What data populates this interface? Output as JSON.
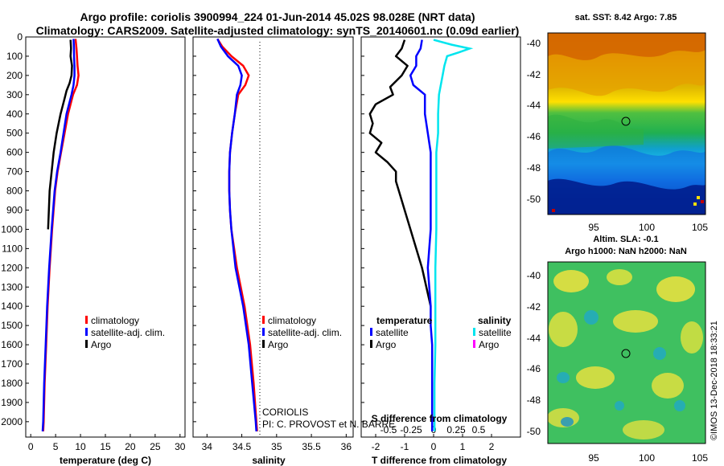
{
  "header": {
    "line1": "Argo profile: coriolis 3900994_224 01-Jun-2014 45.02S 98.028E (NRT data)",
    "line2": "Climatology: CARS2009. Satellite-adjusted climatology: synTS_20140601.nc (0.09d earlier)"
  },
  "colors": {
    "climatology": "#ff0000",
    "satellite": "#0000ff",
    "argo": "#000000",
    "sal_satellite": "#00e5ee",
    "sal_argo": "#ff00ff"
  },
  "chart_data": [
    {
      "type": "line",
      "panel": "temperature",
      "xlabel": "temperature (deg C)",
      "xlim": [
        -1,
        31
      ],
      "ylim": [
        0,
        2080
      ],
      "xticks": [
        "0",
        "5",
        "10",
        "15",
        "20",
        "25",
        "30"
      ],
      "depth_ticks": [
        "0",
        "100",
        "200",
        "300",
        "400",
        "500",
        "600",
        "700",
        "800",
        "900",
        "1000",
        "1100",
        "1200",
        "1300",
        "1400",
        "1500",
        "1600",
        "1700",
        "1800",
        "1900",
        "2000"
      ],
      "legend": [
        "climatology",
        "satellite-adj. clim.",
        "Argo"
      ],
      "series": [
        {
          "name": "climatology",
          "depth": [
            10,
            60,
            100,
            150,
            200,
            250,
            300,
            400,
            500,
            600,
            700,
            800,
            1000,
            1200,
            1400,
            1600,
            1800,
            2000,
            2050
          ],
          "values": [
            9.0,
            9.2,
            9.3,
            9.4,
            9.6,
            9.3,
            8.5,
            7.5,
            6.8,
            6.1,
            5.4,
            4.9,
            4.3,
            3.8,
            3.4,
            3.1,
            2.8,
            2.6,
            2.5
          ]
        },
        {
          "name": "satellite-adj. clim.",
          "depth": [
            10,
            60,
            100,
            150,
            200,
            250,
            300,
            400,
            500,
            600,
            700,
            800,
            1000,
            1200,
            1400,
            1600,
            1800,
            2000,
            2050
          ],
          "values": [
            8.6,
            8.7,
            8.7,
            8.8,
            8.8,
            8.6,
            8.2,
            7.2,
            6.6,
            6.0,
            5.3,
            4.8,
            4.2,
            3.7,
            3.3,
            3.0,
            2.7,
            2.5,
            2.4
          ]
        },
        {
          "name": "Argo",
          "depth": [
            15,
            60,
            100,
            150,
            200,
            240,
            280,
            320,
            400,
            500,
            600,
            700,
            800,
            1000
          ],
          "values": [
            8.0,
            8.1,
            8.0,
            8.3,
            8.2,
            7.8,
            7.2,
            6.8,
            6.0,
            5.2,
            4.6,
            4.2,
            3.8,
            3.5
          ]
        }
      ]
    },
    {
      "type": "line",
      "panel": "salinity",
      "xlabel": "salinity",
      "xlim": [
        33.8,
        36.1
      ],
      "ylim": [
        0,
        2080
      ],
      "xticks": [
        "34",
        "34.5",
        "35",
        "35.5",
        "36"
      ],
      "legend": [
        "climatology",
        "satellite-adj. clim.",
        "Argo"
      ],
      "annotation": [
        "CORIOLIS",
        "PI: C. PROVOST et N. BARRE"
      ],
      "series": [
        {
          "name": "climatology",
          "depth": [
            10,
            50,
            100,
            150,
            200,
            250,
            300,
            400,
            500,
            600,
            700,
            800,
            900,
            1000,
            1200,
            1400,
            1600,
            1800,
            2000,
            2050
          ],
          "values": [
            34.15,
            34.22,
            34.35,
            34.52,
            34.6,
            34.55,
            34.45,
            34.4,
            34.36,
            34.33,
            34.32,
            34.32,
            34.33,
            34.35,
            34.43,
            34.54,
            34.62,
            34.67,
            34.71,
            34.72
          ]
        },
        {
          "name": "satellite-adj. clim.",
          "depth": [
            10,
            50,
            100,
            150,
            200,
            250,
            300,
            400,
            500,
            600,
            700,
            800,
            900,
            1000,
            1200,
            1400,
            1600,
            1800,
            2000,
            2050
          ],
          "values": [
            34.15,
            34.2,
            34.3,
            34.45,
            34.5,
            34.48,
            34.43,
            34.4,
            34.36,
            34.33,
            34.32,
            34.32,
            34.33,
            34.35,
            34.41,
            34.52,
            34.6,
            34.65,
            34.7,
            34.71
          ]
        }
      ]
    },
    {
      "type": "line",
      "panel": "difference",
      "xlabel": "T difference from climatology",
      "toplabel": "S difference from climatology",
      "xlim": [
        -2.5,
        3
      ],
      "ylim": [
        0,
        2080
      ],
      "xticks": [
        "-2",
        "-1",
        "0",
        "1",
        "2"
      ],
      "sticks": [
        "-0.5",
        "-0.25",
        "0",
        "0.25",
        "0.5"
      ],
      "legend_t_title": "temperature",
      "legend_s_title": "salinity",
      "legend_t": [
        "satellite",
        "Argo"
      ],
      "legend_s": [
        "satellite",
        "Argo"
      ],
      "series": [
        {
          "name": "T satellite",
          "depth": [
            15,
            60,
            100,
            150,
            200,
            250,
            300,
            400,
            500,
            600,
            700,
            800,
            900,
            1000,
            1200,
            1400,
            1500,
            1600,
            1800,
            2000,
            2050
          ],
          "values": [
            -0.4,
            -0.45,
            -0.6,
            -0.6,
            -0.8,
            -0.7,
            -0.3,
            -0.3,
            -0.2,
            -0.1,
            -0.1,
            -0.1,
            -0.1,
            -0.1,
            -0.2,
            -0.1,
            -0.1,
            -0.05,
            -0.05,
            -0.05,
            -0.05
          ]
        },
        {
          "name": "T Argo",
          "depth": [
            15,
            60,
            100,
            150,
            200,
            260,
            300,
            350,
            400,
            450,
            500,
            550,
            600,
            650,
            700,
            750,
            800,
            900,
            1000,
            1100,
            1200,
            1300,
            1400
          ],
          "values": [
            -1.0,
            -1.1,
            -1.3,
            -0.9,
            -1.1,
            -1.5,
            -1.4,
            -2.0,
            -2.2,
            -2.1,
            -2.2,
            -1.8,
            -2.0,
            -1.6,
            -1.3,
            -1.3,
            -1.2,
            -1.0,
            -0.8,
            -0.6,
            -0.4,
            -0.25,
            -0.1
          ]
        },
        {
          "name": "S satellite",
          "depth": [
            15,
            40,
            60,
            80,
            100,
            150,
            200,
            300,
            400,
            500,
            600,
            700,
            800,
            900,
            1000,
            1200,
            1400,
            1600,
            1800,
            2000,
            2050
          ],
          "values": [
            0.0,
            0.2,
            0.4,
            0.28,
            0.15,
            0.12,
            0.1,
            0.06,
            0.05,
            0.05,
            0.03,
            0.03,
            0.03,
            0.03,
            0.03,
            0.02,
            0.02,
            0.02,
            0.01,
            0.01,
            0.01
          ]
        }
      ]
    }
  ],
  "map_sst": {
    "label": "sat. SST: 8.42 Argo: 7.85",
    "yticks": [
      "-40",
      "-42",
      "-44",
      "-46",
      "-48",
      "-50"
    ],
    "xticks": [
      "95",
      "100",
      "105"
    ]
  },
  "map_sla": {
    "label1": "Altim. SLA: -0.1",
    "label2": "Argo h1000: NaN h2000: NaN",
    "yticks": [
      "-40",
      "-42",
      "-44",
      "-46",
      "-48",
      "-50"
    ],
    "xticks": [
      "95",
      "100",
      "105"
    ]
  },
  "credit": "©IMOS 13-Dec-2018 18:33:21"
}
